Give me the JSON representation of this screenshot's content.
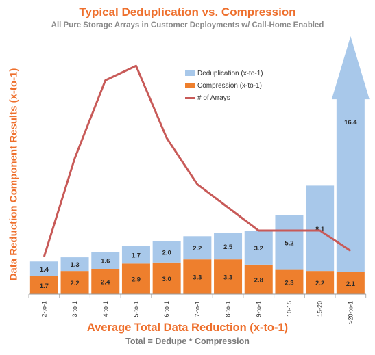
{
  "chart_data": {
    "type": "bar",
    "title": "Typical Deduplication vs. Compression",
    "subtitle": "All Pure Storage Arrays in Customer Deployments w/ Call-Home Enabled",
    "xlabel": "Average Total Data Reduction (x-to-1)",
    "xsublabel": "Total = Dedupe * Compression",
    "ylabel": "Data Reduction Component Results (x-to-1)",
    "stacked": true,
    "categories": [
      "2-to-1",
      "3-to-1",
      "4-to-1",
      "5-to-1",
      "6-to-1",
      "7-to-1",
      "8-to-1",
      "9-to-1",
      "10-15",
      "15-20",
      ">20-to-1"
    ],
    "series": [
      {
        "name": "Compression (x-to-1)",
        "color": "#ee7f2d",
        "values": [
          1.7,
          2.2,
          2.4,
          2.9,
          3.0,
          3.3,
          3.3,
          2.8,
          2.3,
          2.2,
          2.1
        ]
      },
      {
        "name": "Deduplication (x-to-1)",
        "color": "#a8c8ea",
        "values": [
          1.4,
          1.3,
          1.6,
          1.7,
          2.0,
          2.2,
          2.5,
          3.2,
          5.2,
          8.1,
          16.4
        ]
      }
    ],
    "line_series": {
      "name": "# of Arrays",
      "color": "#c85a58",
      "values": [
        6.5,
        23.5,
        37,
        39.5,
        27,
        19,
        15,
        11,
        11,
        11,
        7.5
      ]
    },
    "last_bar_arrow": true,
    "ylim": [
      0,
      41
    ],
    "legend_position": "top-center"
  }
}
